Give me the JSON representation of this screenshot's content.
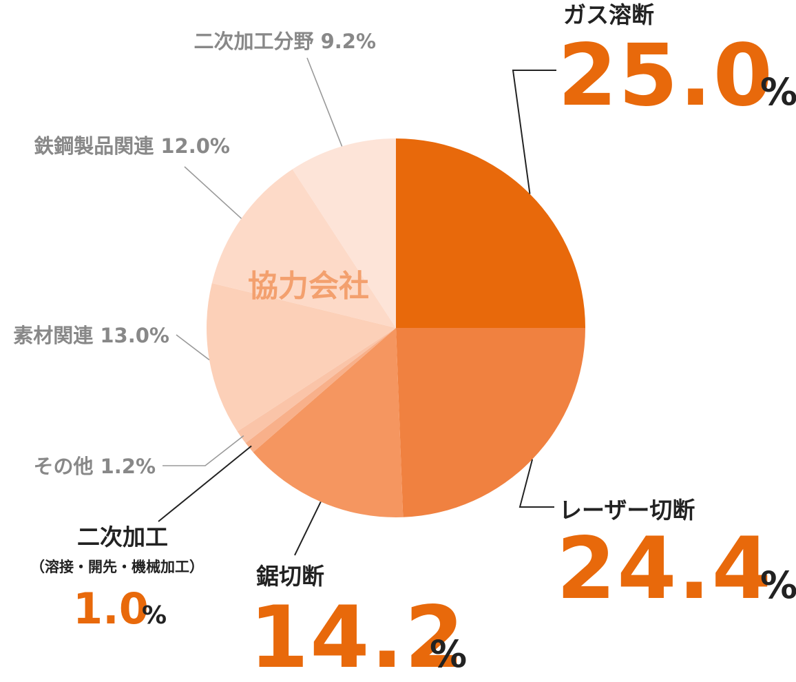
{
  "chart_data": {
    "type": "pie",
    "title": "",
    "center_label": "協力会社",
    "slices": [
      {
        "name": "ガス溶断",
        "value": 25.0,
        "display": "25.0",
        "unit": "%",
        "color": "#e8690b"
      },
      {
        "name": "レーザー切断",
        "value": 24.4,
        "display": "24.4",
        "unit": "%",
        "color": "#f08140"
      },
      {
        "name": "鋸切断",
        "value": 14.2,
        "display": "14.2",
        "unit": "%",
        "color": "#f59660"
      },
      {
        "name": "二次加工",
        "subname": "（溶接・開先・機械加工）",
        "value": 1.0,
        "display": "1.0",
        "unit": "%",
        "color": "#f8b08a"
      },
      {
        "name": "その他",
        "value": 1.2,
        "display": "その他 1.2%",
        "color": "#fac4a8"
      },
      {
        "name": "素材関連",
        "value": 13.0,
        "display": "素材関連 13.0%",
        "color": "#fcd0b8"
      },
      {
        "name": "鉄鋼製品関連",
        "value": 12.0,
        "display": "鉄鋼製品関連 12.0%",
        "color": "#fddac8"
      },
      {
        "name": "二次加工分野",
        "value": 9.2,
        "display": "二次加工分野 9.2%",
        "color": "#fde4d8"
      }
    ]
  }
}
